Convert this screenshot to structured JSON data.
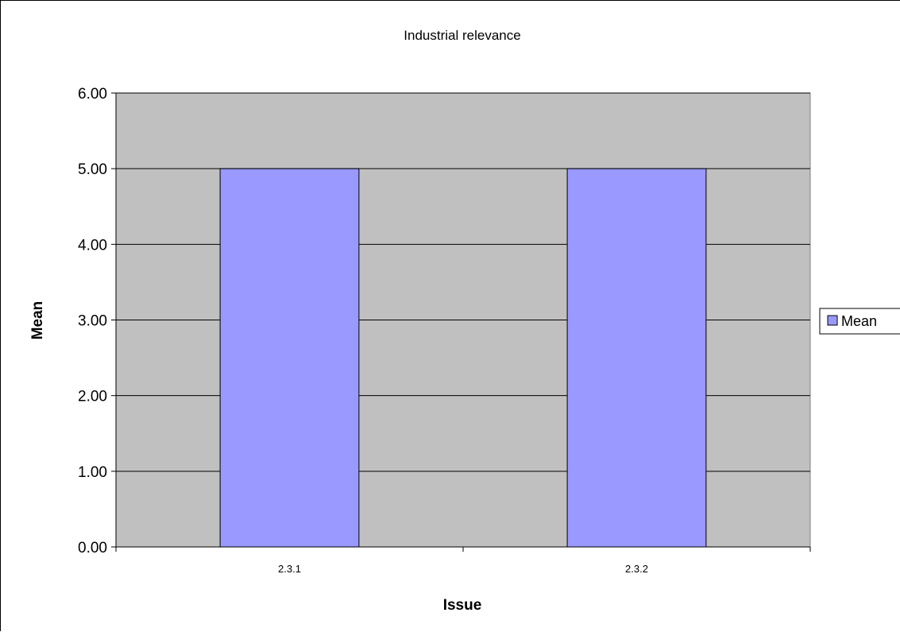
{
  "chart_data": {
    "type": "bar",
    "title": "Industrial relevance",
    "xlabel": "Issue",
    "ylabel": "Mean",
    "categories": [
      "2.3.1",
      "2.3.2"
    ],
    "series": [
      {
        "name": "Mean",
        "values": [
          5.0,
          5.0
        ]
      }
    ],
    "yticks": [
      "0.00",
      "1.00",
      "2.00",
      "3.00",
      "4.00",
      "5.00",
      "6.00"
    ],
    "ylim": [
      0,
      6
    ],
    "grid": true,
    "legend": {
      "position": "right",
      "entries": [
        "Mean"
      ]
    },
    "colors": {
      "plot_background": "#c0c0c0",
      "bar_fill": "#9999ff",
      "bar_stroke": "#000000",
      "gridline": "#000000"
    }
  }
}
